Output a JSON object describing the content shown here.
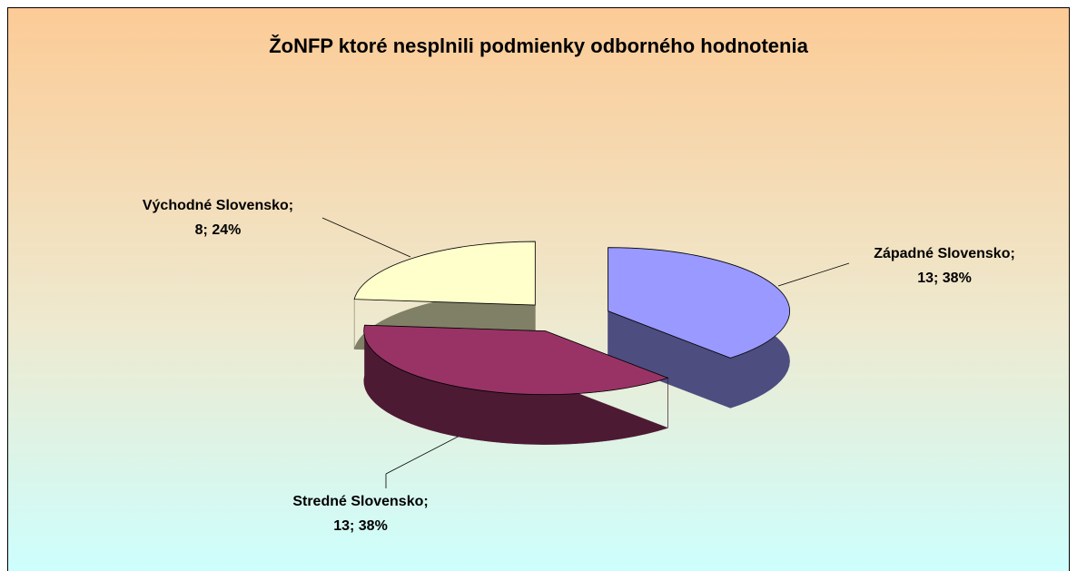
{
  "chart_data": {
    "type": "pie3d",
    "title": "ŽoNFP ktoré nesplnili podmienky odborného hodnotenia",
    "categories": [
      "Západné Slovensko;",
      "Stredné Slovensko;",
      "Východné Slovensko;"
    ],
    "values": [
      13,
      13,
      8
    ],
    "value_labels": [
      "13; 38%",
      "13; 38%",
      "8; 24%"
    ],
    "colors": [
      "#9999ff",
      "#993366",
      "#ffffcc"
    ],
    "side_colors": [
      "#4d4d80",
      "#4d1a33",
      "#808066"
    ],
    "exploded": true
  }
}
